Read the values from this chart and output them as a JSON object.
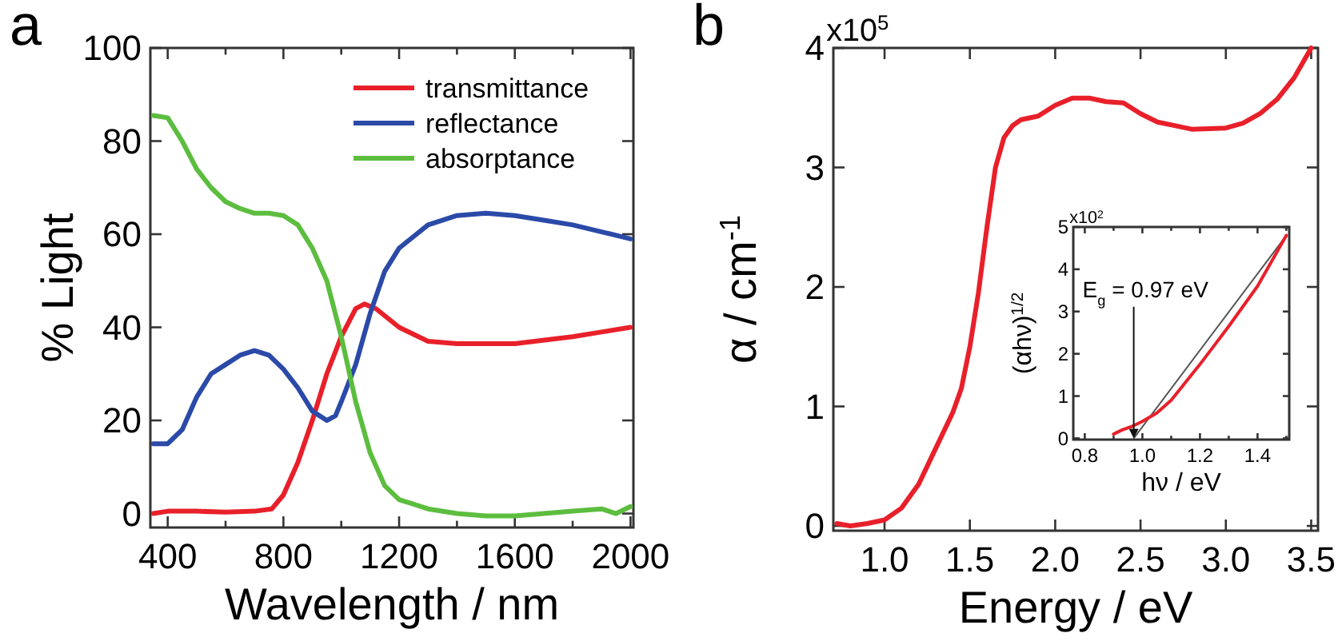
{
  "chart_data": [
    {
      "type": "line",
      "title": "a",
      "xlabel": "Wavelength / nm",
      "ylabel": "% Light",
      "xlim": [
        340,
        2010
      ],
      "ylim": [
        -3,
        100
      ],
      "xticks": [
        400,
        {
          "value": 600,
          "label": null
        },
        800,
        {
          "value": 1000,
          "label": null
        },
        1200,
        {
          "value": 1400,
          "label": null
        },
        1600,
        {
          "value": 1800,
          "label": null
        },
        2000
      ],
      "yticks": [
        0,
        20,
        40,
        60,
        80,
        100
      ],
      "legend": "top right",
      "grid": false,
      "marker": "none",
      "line_style": "solid",
      "series": [
        {
          "name": "transmittance",
          "color": "#e8202a",
          "x": [
            350,
            400,
            500,
            600,
            700,
            760,
            800,
            850,
            900,
            950,
            1000,
            1050,
            1080,
            1120,
            1200,
            1300,
            1400,
            1600,
            1800,
            1900,
            2000
          ],
          "values": [
            0,
            0.5,
            0.5,
            0.3,
            0.5,
            1,
            4,
            11,
            20,
            30,
            38,
            44,
            45,
            44,
            40,
            37,
            36.5,
            36.5,
            38,
            39,
            40
          ]
        },
        {
          "name": "reflectance",
          "color": "#2b4aa8",
          "x": [
            350,
            400,
            450,
            500,
            550,
            600,
            650,
            700,
            750,
            800,
            850,
            900,
            950,
            980,
            1000,
            1050,
            1100,
            1150,
            1200,
            1300,
            1400,
            1500,
            1600,
            1700,
            1800,
            1900,
            2000
          ],
          "values": [
            15,
            15,
            18,
            25,
            30,
            32,
            34,
            35,
            34,
            31,
            27,
            22,
            20,
            21,
            24,
            32,
            43,
            52,
            57,
            62,
            64,
            64.5,
            64,
            63,
            62,
            60.5,
            59
          ]
        },
        {
          "name": "absorptance",
          "color": "#5cbd3f",
          "x": [
            350,
            400,
            450,
            500,
            550,
            600,
            650,
            700,
            750,
            800,
            850,
            880,
            900,
            950,
            1000,
            1050,
            1100,
            1150,
            1200,
            1300,
            1400,
            1500,
            1600,
            1800,
            1900,
            1950,
            2000
          ],
          "values": [
            85.5,
            85,
            80,
            74,
            70,
            67,
            65.5,
            64.5,
            64.5,
            64,
            62,
            59,
            57,
            50,
            38,
            24,
            13,
            6,
            3,
            1,
            0,
            -0.5,
            -0.5,
            0.5,
            1,
            0,
            1.5
          ]
        }
      ]
    },
    {
      "type": "line",
      "title": "b",
      "xlabel": "Energy / eV",
      "ylabel": "α / cm$^{-1}$",
      "xlim": [
        0.7,
        3.54
      ],
      "ylim": [
        -0.04,
        4
      ],
      "xticks": [
        {
          "value": 1,
          "label": "1.0"
        },
        {
          "value": 1.5,
          "label": "1.5"
        },
        {
          "value": 2,
          "label": "2.0"
        },
        {
          "value": 2.5,
          "label": "2.5"
        },
        {
          "value": 3,
          "label": "3.0"
        },
        {
          "value": 3.5,
          "label": "3.5"
        }
      ],
      "yticks": [
        0,
        1,
        2,
        3,
        4
      ],
      "annotations": [
        "x10$^{5}$"
      ],
      "grid": false,
      "marker": "none",
      "line_style": "solid",
      "series": [
        {
          "color": "#e8202a",
          "x": [
            0.72,
            0.8,
            0.9,
            1.0,
            1.1,
            1.2,
            1.3,
            1.4,
            1.45,
            1.5,
            1.55,
            1.6,
            1.65,
            1.7,
            1.75,
            1.8,
            1.9,
            2.0,
            2.1,
            2.2,
            2.3,
            2.4,
            2.5,
            2.6,
            2.7,
            2.8,
            3.0,
            3.1,
            3.2,
            3.3,
            3.4,
            3.5
          ],
          "values": [
            0.02,
            0,
            0.02,
            0.05,
            0.15,
            0.35,
            0.65,
            0.95,
            1.15,
            1.5,
            1.95,
            2.5,
            3.0,
            3.25,
            3.35,
            3.4,
            3.43,
            3.52,
            3.58,
            3.58,
            3.55,
            3.54,
            3.45,
            3.38,
            3.35,
            3.32,
            3.33,
            3.37,
            3.45,
            3.57,
            3.75,
            4.0
          ]
        }
      ]
    },
    {
      "type": "line",
      "xlabel": "hν / eV",
      "ylabel": "(αhν)$^{1/2}$",
      "xlim": [
        0.76,
        1.51
      ],
      "ylim": [
        -0.03,
        5
      ],
      "xticks": [
        0.8,
        {
          "value": 0.9,
          "label": null
        },
        {
          "value": 1,
          "label": "1.0"
        },
        {
          "value": 1.1,
          "label": null
        },
        1.2,
        {
          "value": 1.3,
          "label": null
        },
        1.4,
        {
          "value": 1.5,
          "label": null
        }
      ],
      "yticks": [
        0,
        1,
        2,
        3,
        4,
        5
      ],
      "grid": false,
      "marker": "none",
      "line_style": "solid",
      "annotations": [
        "x10$^{2}$",
        {
          "text": "E$_{g}$ = 0.97 eV",
          "x": 0.97,
          "y": 0
        }
      ],
      "series": [
        {
          "color": "#555555",
          "x": [
            0.97,
            1.5
          ],
          "values": [
            0,
            4.8
          ]
        },
        {
          "color": "#e8202a",
          "x": [
            0.9,
            0.93,
            0.97,
            1.0,
            1.05,
            1.1,
            1.2,
            1.3,
            1.4,
            1.5
          ],
          "values": [
            0.1,
            0.2,
            0.3,
            0.4,
            0.6,
            0.9,
            1.75,
            2.65,
            3.6,
            4.8
          ]
        }
      ]
    }
  ]
}
